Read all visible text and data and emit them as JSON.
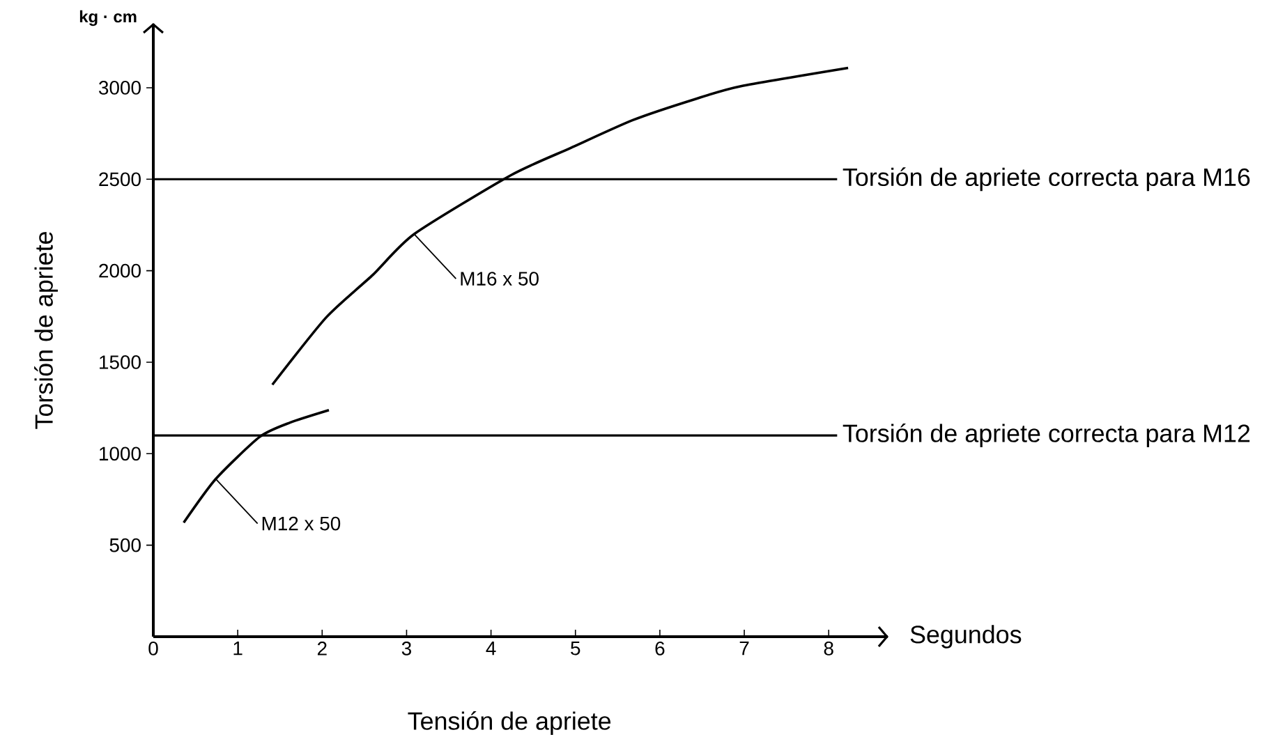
{
  "chart_data": {
    "type": "line",
    "xlabel": "Segundos",
    "ylabel": "Torsión de apriete",
    "xlim": [
      0,
      8.7
    ],
    "ylim": [
      0,
      3350
    ],
    "xticks": [
      0,
      1,
      2,
      3,
      4,
      5,
      6,
      7,
      8
    ],
    "yticks": [
      500,
      1000,
      1500,
      2000,
      2500,
      3000
    ],
    "marker": "none",
    "line_style": "solid",
    "series": [
      {
        "color": "#000000",
        "x": [
          1.41,
          2.05,
          2.6,
          3.09,
          4.24,
          4.94,
          5.68,
          6.42,
          6.96,
          8.23
        ],
        "values": [
          1377,
          1746,
          1977,
          2200,
          2523,
          2670,
          2823,
          2938,
          3008,
          3108
        ]
      },
      {
        "color": "#000000",
        "x": [
          0.36,
          0.74,
          1.26,
          1.62,
          2.08
        ],
        "values": [
          623,
          862,
          1092,
          1170,
          1238
        ]
      }
    ],
    "ref_lines": [
      {
        "axis": "y",
        "value": 2500,
        "label": "Torsión de apriete correcta para M16",
        "color": "#000000"
      },
      {
        "axis": "y",
        "value": 1100,
        "label": "Torsión de apriete correcta para M12",
        "color": "#000000"
      }
    ],
    "annotations": [
      "kg · cm",
      "Tensión de apriete",
      {
        "text": "M16 x 50",
        "x": 3.09,
        "y": 2200
      },
      {
        "text": "M12 x 50",
        "x": 0.74,
        "y": 862
      }
    ]
  }
}
